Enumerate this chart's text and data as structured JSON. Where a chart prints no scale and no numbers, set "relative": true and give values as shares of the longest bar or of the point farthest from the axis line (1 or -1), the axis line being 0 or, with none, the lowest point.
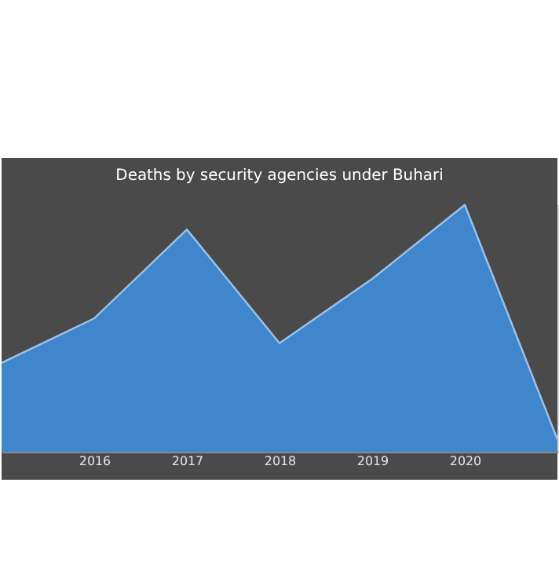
{
  "chart_data": {
    "type": "area",
    "title": "Deaths by security agencies under Buhari",
    "relative": true,
    "categories": [
      null,
      "2016",
      "2017",
      "2018",
      "2019",
      "2020",
      null
    ],
    "series": [
      {
        "color": "#3f86cc",
        "values": [
          0.36,
          0.54,
          0.9,
          0.44,
          0.7,
          1,
          0.05
        ]
      }
    ],
    "grid": false
  }
}
